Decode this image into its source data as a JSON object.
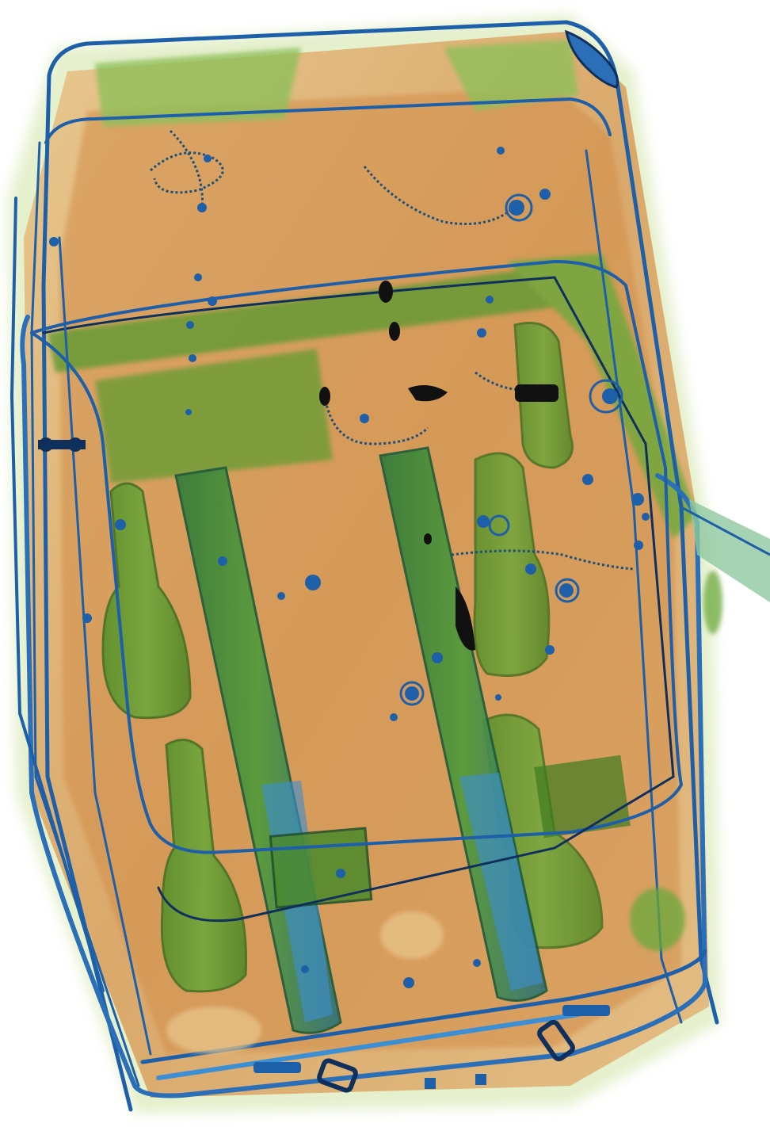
{
  "image": {
    "subject": "x-ray-baggage-scan",
    "palette": {
      "background": "#ffffff",
      "organic_light": "#f1d9ae",
      "organic": "#d9a262",
      "organic_dark": "#c6843f",
      "mixed_light": "#9cc85a",
      "mixed": "#5c9a2d",
      "mixed_dark": "#3f7a1f",
      "metal_light": "#3c8fd4",
      "metal": "#1d5fa8",
      "metal_dark": "#0f2f5c",
      "dense": "#111111"
    }
  }
}
